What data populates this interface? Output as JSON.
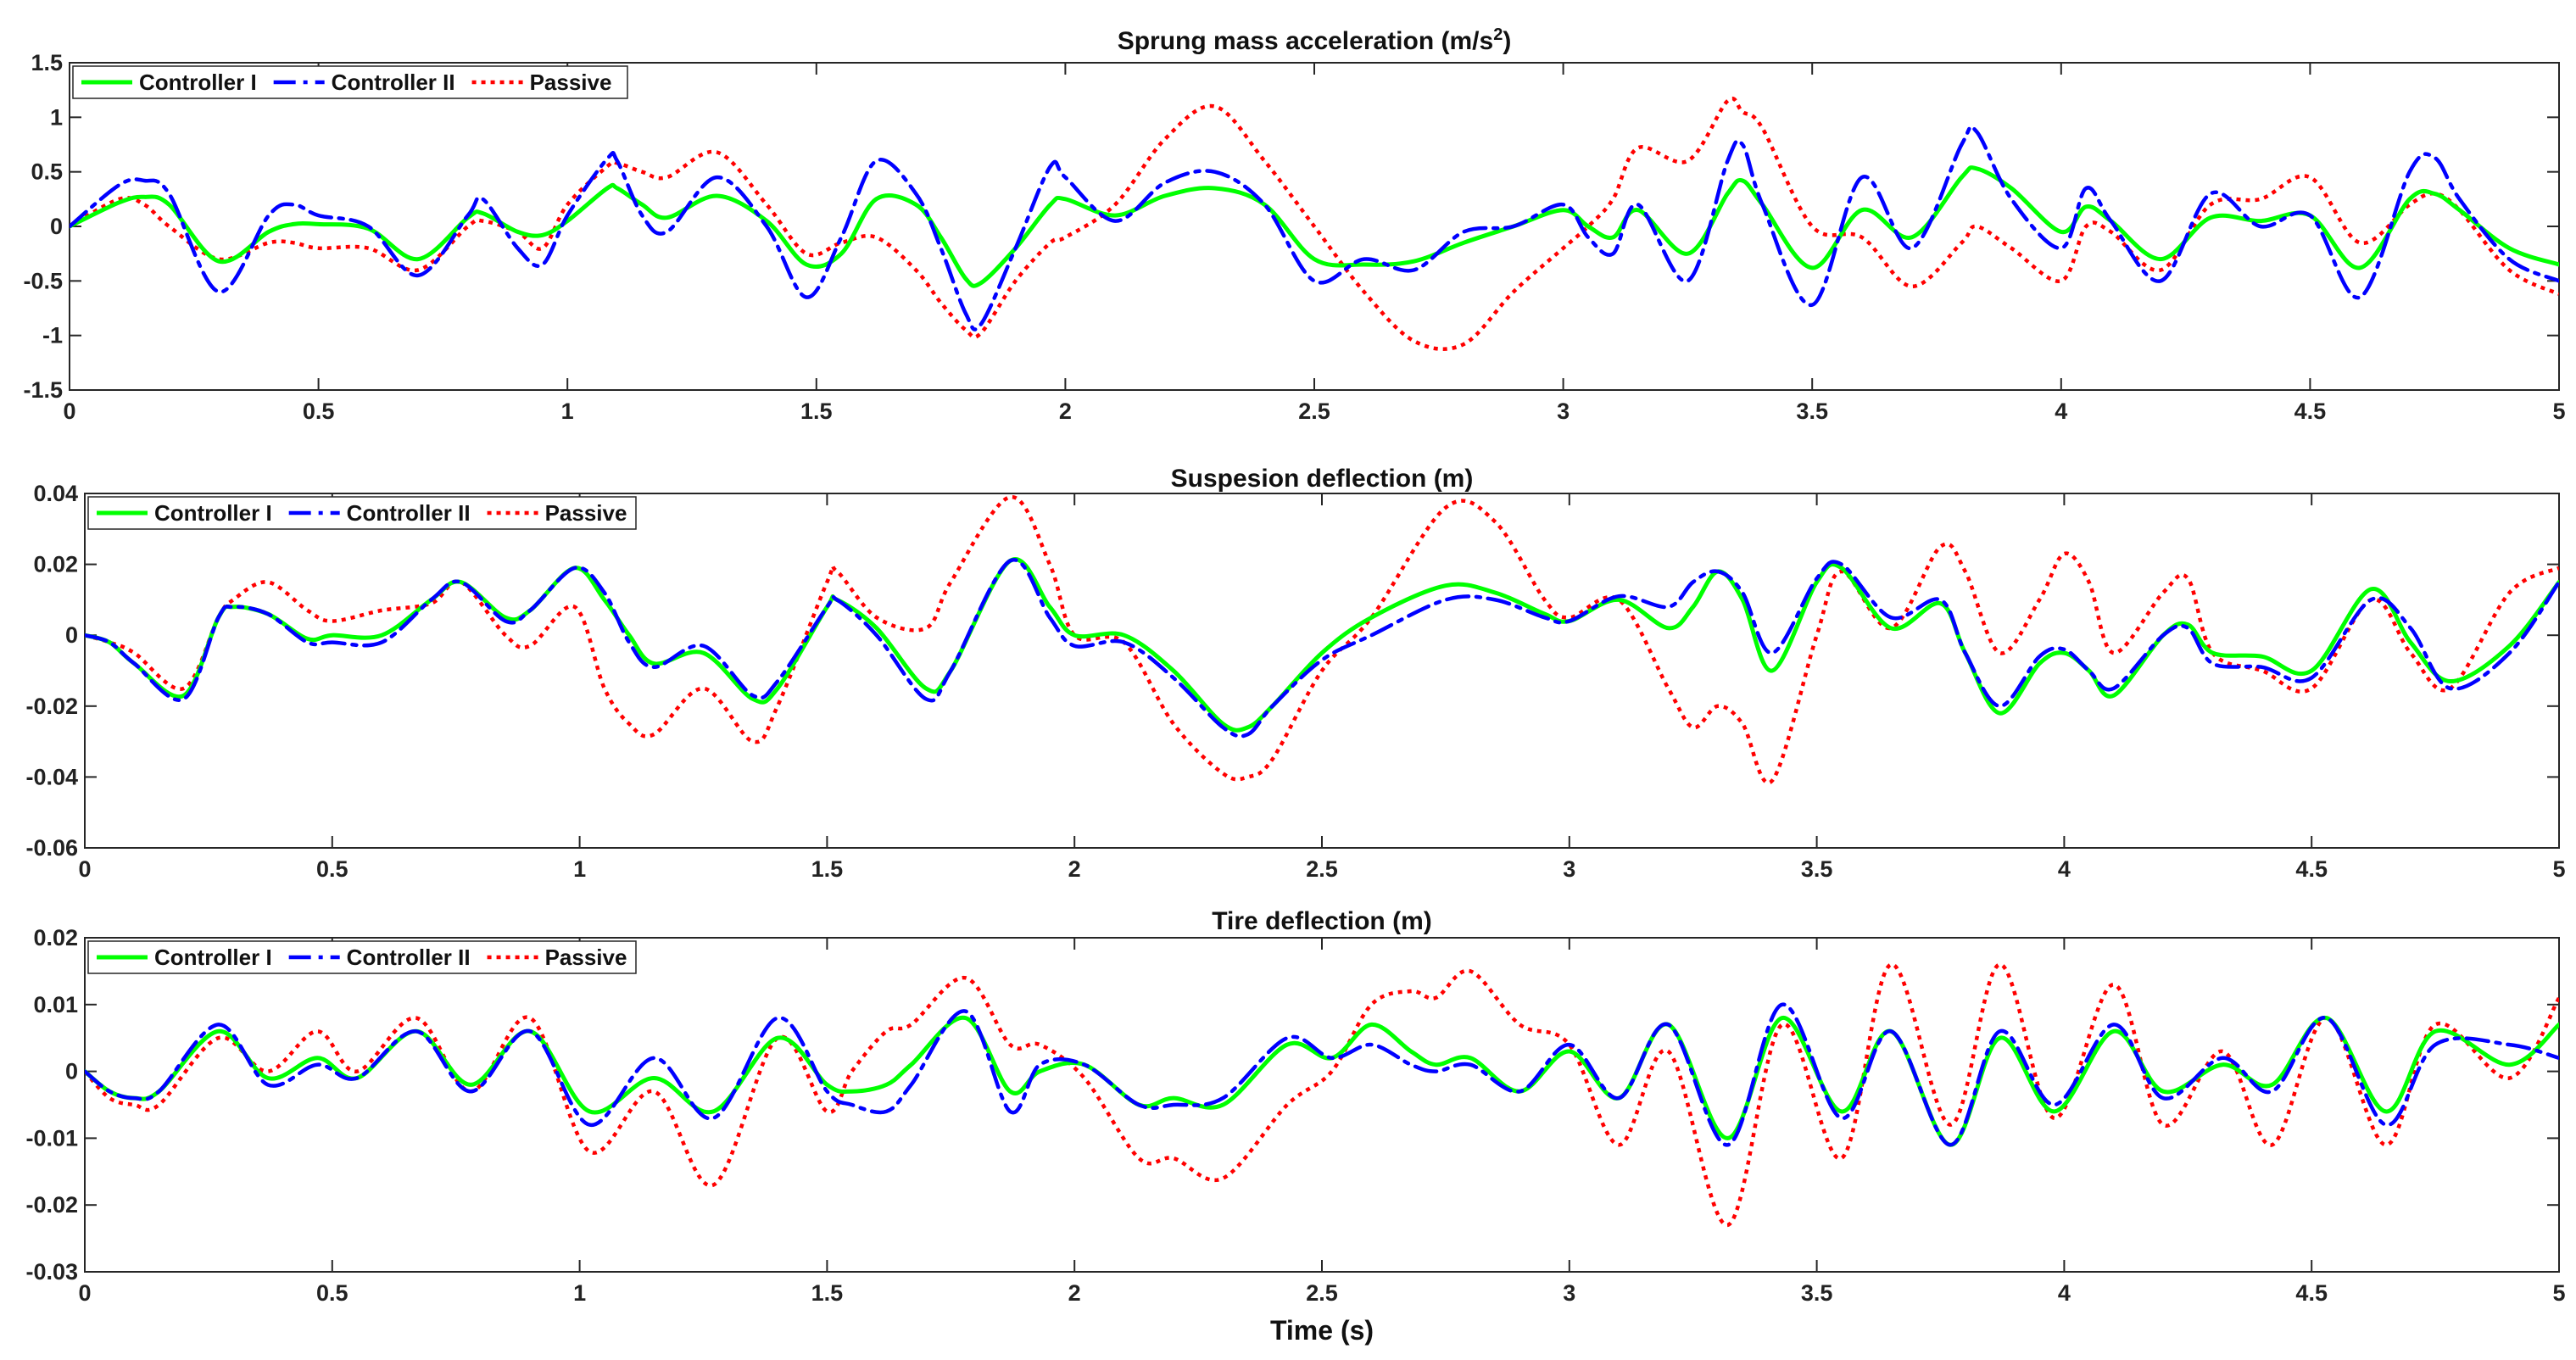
{
  "colors": {
    "controller1": "#00ff00",
    "controller2": "#0000ff",
    "passive": "#ff0000"
  },
  "chart_data": [
    {
      "type": "line",
      "title": "Sprung mass acceleration (m/s",
      "title_superscript": "2",
      "title_suffix": ")",
      "xlabel": "",
      "ylabel": "",
      "xlim": [
        0,
        5
      ],
      "ylim": [
        -1.5,
        1.5
      ],
      "xticks": [
        "0",
        "0.5",
        "1",
        "1.5",
        "2",
        "2.5",
        "3",
        "3.5",
        "4",
        "4.5",
        "5"
      ],
      "yticks": [
        "1.5",
        "1",
        "0.5",
        "0",
        "-0.5",
        "-1",
        "-1.5"
      ],
      "ytick_values": [
        1.5,
        1,
        0.5,
        0,
        -0.5,
        -1,
        -1.5
      ],
      "legend_position": "top-left",
      "x": [
        0,
        0.1,
        0.15,
        0.2,
        0.3,
        0.4,
        0.45,
        0.5,
        0.6,
        0.7,
        0.8,
        0.83,
        0.9,
        0.95,
        1.0,
        1.08,
        1.1,
        1.15,
        1.2,
        1.3,
        1.4,
        1.48,
        1.55,
        1.62,
        1.7,
        1.75,
        1.8,
        1.83,
        1.9,
        1.97,
        2.0,
        2.1,
        2.2,
        2.3,
        2.4,
        2.5,
        2.6,
        2.7,
        2.8,
        2.9,
        3.0,
        3.05,
        3.1,
        3.15,
        3.25,
        3.33,
        3.36,
        3.4,
        3.5,
        3.6,
        3.7,
        3.8,
        3.83,
        3.9,
        4.0,
        4.05,
        4.1,
        4.2,
        4.3,
        4.4,
        4.5,
        4.6,
        4.7,
        4.75,
        4.8,
        4.9,
        5.0
      ],
      "series": [
        {
          "name": "Controller I",
          "color_key": "controller1",
          "dash": "solid",
          "values": [
            0,
            0.22,
            0.27,
            0.2,
            -0.32,
            -0.05,
            0.02,
            0.02,
            -0.02,
            -0.3,
            0.08,
            0.12,
            -0.05,
            -0.08,
            0.05,
            0.35,
            0.35,
            0.2,
            0.08,
            0.28,
            0.05,
            -0.35,
            -0.25,
            0.25,
            0.2,
            -0.1,
            -0.48,
            -0.52,
            -0.2,
            0.2,
            0.25,
            0.1,
            0.28,
            0.35,
            0.2,
            -0.3,
            -0.35,
            -0.32,
            -0.15,
            0.0,
            0.15,
            0.0,
            -0.1,
            0.15,
            -0.25,
            0.3,
            0.42,
            0.2,
            -0.38,
            0.15,
            -0.1,
            0.45,
            0.53,
            0.35,
            -0.05,
            0.18,
            0.05,
            -0.3,
            0.08,
            0.05,
            0.1,
            -0.38,
            0.25,
            0.3,
            0.15,
            -0.2,
            -0.35
          ]
        },
        {
          "name": "Controller II",
          "color_key": "controller2",
          "dash": "dashdot",
          "values": [
            0,
            0.38,
            0.42,
            0.3,
            -0.6,
            0.1,
            0.2,
            0.1,
            0.0,
            -0.45,
            0.1,
            0.25,
            -0.2,
            -0.35,
            0.1,
            0.62,
            0.6,
            0.1,
            -0.05,
            0.45,
            0.0,
            -0.65,
            -0.1,
            0.6,
            0.3,
            -0.2,
            -0.8,
            -0.9,
            -0.2,
            0.55,
            0.45,
            0.05,
            0.4,
            0.5,
            0.2,
            -0.5,
            -0.3,
            -0.4,
            -0.05,
            0.0,
            0.2,
            -0.1,
            -0.25,
            0.2,
            -0.5,
            0.6,
            0.75,
            0.2,
            -0.72,
            0.45,
            -0.2,
            0.75,
            0.87,
            0.25,
            -0.2,
            0.35,
            0.05,
            -0.5,
            0.3,
            0.0,
            0.1,
            -0.65,
            0.5,
            0.63,
            0.25,
            -0.3,
            -0.5
          ]
        },
        {
          "name": "Passive",
          "color_key": "passive",
          "dash": "dotted",
          "values": [
            0,
            0.25,
            0.2,
            0.0,
            -0.3,
            -0.15,
            -0.15,
            -0.2,
            -0.2,
            -0.4,
            0.0,
            0.05,
            -0.05,
            -0.2,
            0.2,
            0.55,
            0.58,
            0.5,
            0.45,
            0.68,
            0.2,
            -0.25,
            -0.15,
            -0.1,
            -0.4,
            -0.7,
            -0.95,
            -0.98,
            -0.5,
            -0.15,
            -0.1,
            0.2,
            0.8,
            1.1,
            0.6,
            0.0,
            -0.6,
            -1.05,
            -1.08,
            -0.6,
            -0.2,
            0.0,
            0.25,
            0.72,
            0.6,
            1.15,
            1.05,
            0.9,
            0.0,
            -0.1,
            -0.55,
            -0.15,
            0.0,
            -0.2,
            -0.5,
            0.0,
            -0.05,
            -0.4,
            0.2,
            0.25,
            0.45,
            -0.15,
            0.2,
            0.3,
            0.15,
            -0.4,
            -0.62
          ]
        }
      ]
    },
    {
      "type": "line",
      "title": "Suspesion deflection (m)",
      "title_superscript": "",
      "title_suffix": "",
      "xlabel": "",
      "ylabel": "",
      "xlim": [
        0,
        5
      ],
      "ylim": [
        -0.06,
        0.04
      ],
      "xticks": [
        "0",
        "0.5",
        "1",
        "1.5",
        "2",
        "2.5",
        "3",
        "3.5",
        "4",
        "4.5",
        "5"
      ],
      "yticks": [
        "0.04",
        "0.02",
        "0",
        "-0.02",
        "-0.04",
        "-0.06"
      ],
      "ytick_values": [
        0.04,
        0.02,
        0,
        -0.02,
        -0.04,
        -0.06
      ],
      "legend_position": "top-left",
      "x": [
        0,
        0.05,
        0.1,
        0.2,
        0.27,
        0.3,
        0.37,
        0.45,
        0.5,
        0.6,
        0.7,
        0.76,
        0.85,
        0.9,
        0.99,
        1.05,
        1.1,
        1.15,
        1.25,
        1.35,
        1.4,
        1.5,
        1.52,
        1.6,
        1.7,
        1.75,
        1.87,
        1.95,
        2.0,
        2.1,
        2.2,
        2.3,
        2.35,
        2.4,
        2.5,
        2.6,
        2.75,
        2.85,
        2.95,
        3.0,
        3.1,
        3.2,
        3.25,
        3.3,
        3.35,
        3.41,
        3.5,
        3.55,
        3.65,
        3.75,
        3.8,
        3.87,
        3.95,
        4.0,
        4.05,
        4.1,
        4.2,
        4.25,
        4.3,
        4.4,
        4.5,
        4.62,
        4.7,
        4.78,
        4.9,
        5.0
      ],
      "series": [
        {
          "name": "Controller I",
          "color_key": "controller1",
          "dash": "solid",
          "values": [
            0,
            -0.002,
            -0.008,
            -0.017,
            0.005,
            0.008,
            0.006,
            -0.001,
            0.0,
            0.0,
            0.01,
            0.015,
            0.005,
            0.007,
            0.019,
            0.01,
            0.0,
            -0.008,
            -0.005,
            -0.018,
            -0.015,
            0.008,
            0.01,
            0.002,
            -0.015,
            -0.01,
            0.021,
            0.008,
            0.0,
            0.0,
            -0.01,
            -0.025,
            -0.026,
            -0.02,
            -0.005,
            0.005,
            0.014,
            0.012,
            0.006,
            0.004,
            0.01,
            0.002,
            0.008,
            0.018,
            0.01,
            -0.01,
            0.015,
            0.019,
            0.002,
            0.009,
            -0.005,
            -0.022,
            -0.008,
            -0.005,
            -0.01,
            -0.017,
            0.0,
            0.003,
            -0.005,
            -0.006,
            -0.01,
            0.013,
            -0.002,
            -0.013,
            -0.003,
            0.015
          ]
        },
        {
          "name": "Controller II",
          "color_key": "controller2",
          "dash": "dashdot",
          "values": [
            0,
            -0.002,
            -0.008,
            -0.018,
            0.005,
            0.008,
            0.006,
            -0.002,
            -0.002,
            -0.002,
            0.01,
            0.015,
            0.004,
            0.007,
            0.019,
            0.012,
            -0.002,
            -0.009,
            -0.003,
            -0.017,
            -0.013,
            0.008,
            0.01,
            0.0,
            -0.018,
            -0.01,
            0.021,
            0.005,
            -0.003,
            -0.002,
            -0.012,
            -0.026,
            -0.028,
            -0.02,
            -0.007,
            0.0,
            0.01,
            0.01,
            0.005,
            0.004,
            0.011,
            0.008,
            0.015,
            0.018,
            0.012,
            -0.005,
            0.016,
            0.02,
            0.005,
            0.01,
            -0.005,
            -0.02,
            -0.006,
            -0.004,
            -0.01,
            -0.015,
            0.0,
            0.002,
            -0.008,
            -0.009,
            -0.012,
            0.01,
            0.002,
            -0.015,
            -0.005,
            0.015
          ]
        },
        {
          "name": "Passive",
          "color_key": "passive",
          "dash": "dotted",
          "values": [
            0,
            -0.002,
            -0.005,
            -0.015,
            0.005,
            0.01,
            0.015,
            0.007,
            0.004,
            0.007,
            0.009,
            0.015,
            0.0,
            -0.003,
            0.008,
            -0.015,
            -0.025,
            -0.028,
            -0.015,
            -0.03,
            -0.02,
            0.015,
            0.018,
            0.005,
            0.002,
            0.015,
            0.039,
            0.02,
            0.0,
            -0.002,
            -0.025,
            -0.039,
            -0.04,
            -0.035,
            -0.01,
            0.005,
            0.036,
            0.032,
            0.01,
            0.005,
            0.01,
            -0.015,
            -0.026,
            -0.02,
            -0.025,
            -0.041,
            0.0,
            0.018,
            0.002,
            0.025,
            0.018,
            -0.005,
            0.01,
            0.023,
            0.015,
            -0.005,
            0.012,
            0.016,
            -0.005,
            -0.01,
            -0.015,
            0.01,
            -0.005,
            -0.015,
            0.012,
            0.019
          ]
        }
      ]
    },
    {
      "type": "line",
      "title": "Tire deflection (m)",
      "title_superscript": "",
      "title_suffix": "",
      "xlabel": "Time (s)",
      "ylabel": "",
      "xlim": [
        0,
        5
      ],
      "ylim": [
        -0.03,
        0.02
      ],
      "xticks": [
        "0",
        "0.5",
        "1",
        "1.5",
        "2",
        "2.5",
        "3",
        "3.5",
        "4",
        "4.5",
        "5"
      ],
      "yticks": [
        "0.02",
        "0.01",
        "0",
        "-0.01",
        "-0.02",
        "-0.03"
      ],
      "ytick_values": [
        0.02,
        0.01,
        0,
        -0.01,
        -0.02,
        -0.03
      ],
      "legend_position": "top-left",
      "x": [
        0,
        0.05,
        0.1,
        0.15,
        0.27,
        0.37,
        0.47,
        0.55,
        0.67,
        0.78,
        0.9,
        1.02,
        1.15,
        1.27,
        1.4,
        1.5,
        1.55,
        1.62,
        1.67,
        1.78,
        1.87,
        1.93,
        2.02,
        2.13,
        2.2,
        2.3,
        2.43,
        2.52,
        2.6,
        2.68,
        2.73,
        2.8,
        2.9,
        3.0,
        3.1,
        3.2,
        3.32,
        3.43,
        3.55,
        3.65,
        3.77,
        3.87,
        3.98,
        4.1,
        4.2,
        4.32,
        4.42,
        4.53,
        4.65,
        4.75,
        4.9,
        5.0
      ],
      "series": [
        {
          "name": "Controller I",
          "color_key": "controller1",
          "dash": "solid",
          "values": [
            0,
            -0.003,
            -0.004,
            -0.003,
            0.006,
            -0.001,
            0.002,
            -0.001,
            0.006,
            -0.002,
            0.006,
            -0.006,
            -0.001,
            -0.006,
            0.005,
            -0.002,
            -0.003,
            -0.002,
            0.001,
            0.008,
            -0.003,
            0.0,
            0.001,
            -0.005,
            -0.004,
            -0.005,
            0.004,
            0.002,
            0.007,
            0.003,
            0.001,
            0.002,
            -0.003,
            0.003,
            -0.004,
            0.007,
            -0.01,
            0.008,
            -0.006,
            0.006,
            -0.011,
            0.005,
            -0.006,
            0.006,
            -0.003,
            0.001,
            -0.002,
            0.008,
            -0.006,
            0.006,
            0.001,
            0.007
          ]
        },
        {
          "name": "Controller II",
          "color_key": "controller2",
          "dash": "dashdot",
          "values": [
            0,
            -0.003,
            -0.004,
            -0.003,
            0.007,
            -0.002,
            0.001,
            -0.001,
            0.006,
            -0.003,
            0.006,
            -0.008,
            0.002,
            -0.007,
            0.008,
            -0.003,
            -0.005,
            -0.006,
            -0.002,
            0.009,
            -0.006,
            0.001,
            0.001,
            -0.005,
            -0.005,
            -0.004,
            0.005,
            0.002,
            0.004,
            0.001,
            0.0,
            0.001,
            -0.003,
            0.004,
            -0.004,
            0.007,
            -0.011,
            0.01,
            -0.007,
            0.006,
            -0.011,
            0.006,
            -0.005,
            0.007,
            -0.004,
            0.002,
            -0.003,
            0.008,
            -0.008,
            0.004,
            0.004,
            0.002
          ]
        },
        {
          "name": "Passive",
          "color_key": "passive",
          "dash": "dotted",
          "values": [
            0,
            -0.004,
            -0.005,
            -0.005,
            0.005,
            0.0,
            0.006,
            0.0,
            0.008,
            -0.003,
            0.008,
            -0.012,
            -0.003,
            -0.017,
            0.005,
            -0.006,
            0.0,
            0.006,
            0.007,
            0.014,
            0.004,
            0.004,
            -0.001,
            -0.013,
            -0.013,
            -0.016,
            -0.005,
            0.0,
            0.01,
            0.012,
            0.011,
            0.015,
            0.007,
            0.004,
            -0.011,
            0.003,
            -0.023,
            0.007,
            -0.013,
            0.016,
            -0.008,
            0.016,
            -0.007,
            0.013,
            -0.008,
            0.003,
            -0.011,
            0.008,
            -0.011,
            0.007,
            -0.001,
            0.011
          ]
        }
      ]
    }
  ]
}
